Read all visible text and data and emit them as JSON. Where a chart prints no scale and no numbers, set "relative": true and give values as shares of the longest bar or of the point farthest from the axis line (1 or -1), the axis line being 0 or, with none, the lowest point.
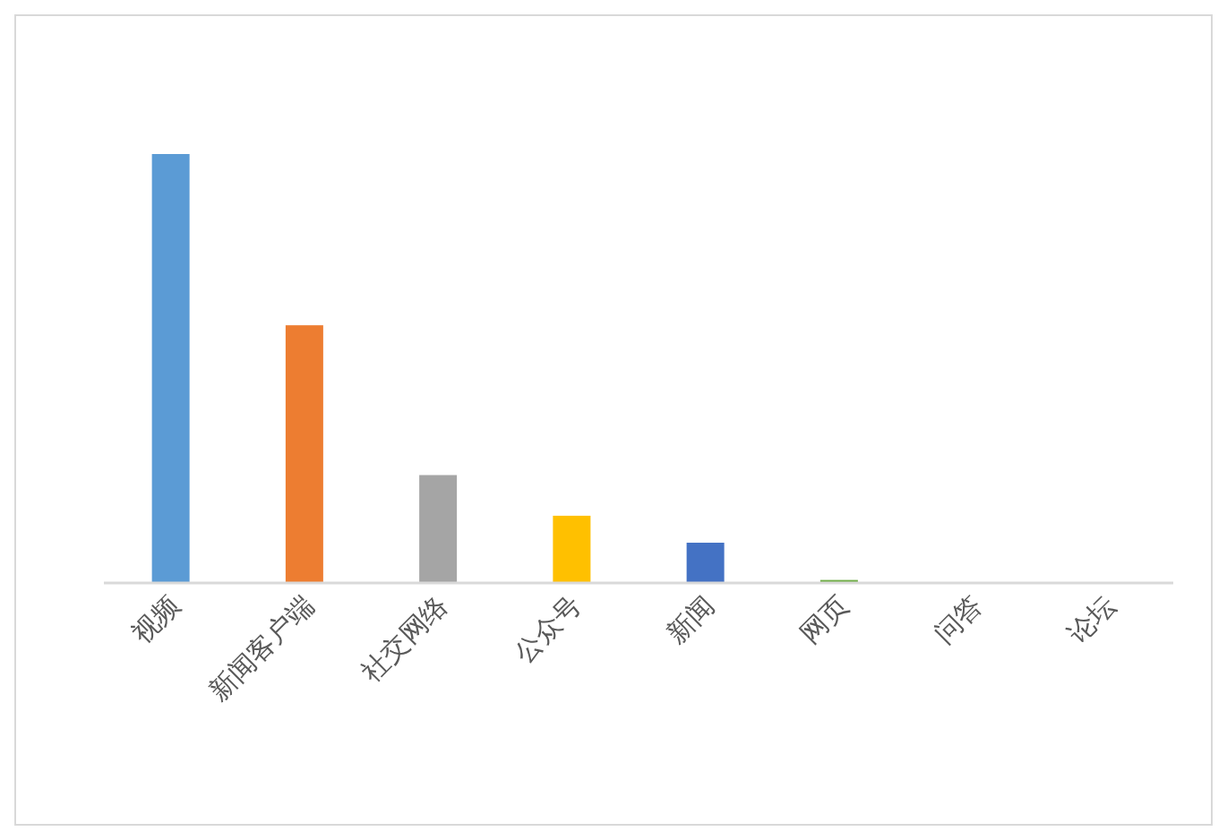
{
  "chart_data": {
    "type": "bar",
    "relative": true,
    "categories": [
      "视频",
      "新闻客户端",
      "社交网络",
      "公众号",
      "新闻",
      "网页",
      "问答",
      "论坛"
    ],
    "values": [
      1,
      0.6,
      0.25,
      0.155,
      0.092,
      0.005,
      0,
      0
    ],
    "colors": [
      "#5b9bd5",
      "#ed7d31",
      "#a5a5a5",
      "#ffc000",
      "#4472c4",
      "#70ad47",
      "#264478",
      "#9e480e"
    ]
  }
}
